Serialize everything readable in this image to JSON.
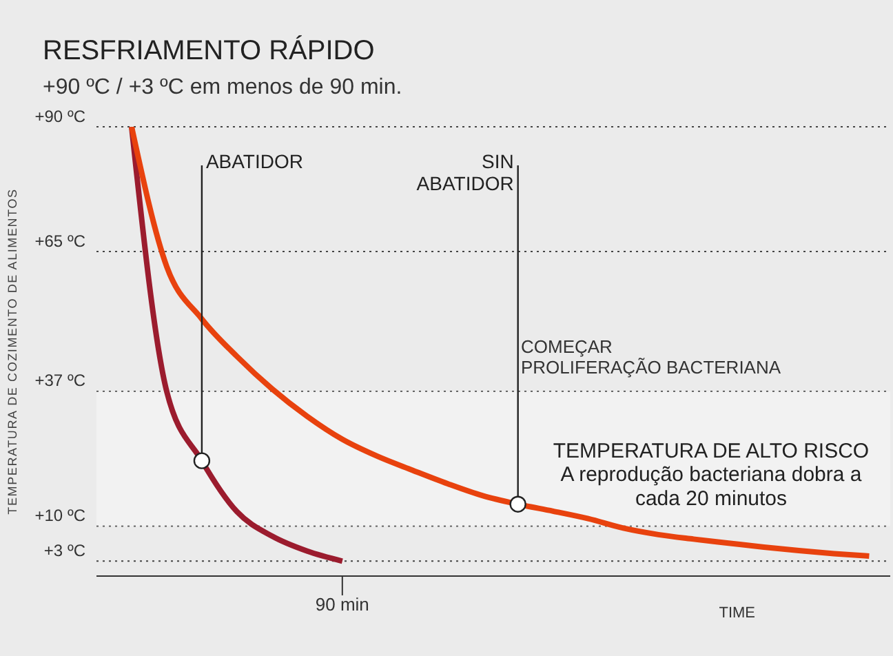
{
  "chart_data": {
    "type": "line",
    "title": "RESFRIAMENTO RÁPIDO",
    "subtitle": "+90 ºC / +3 ºC em menos de 90 min.",
    "ylabel": "TEMPERATURA DE COZIMENTO DE ALIMENTOS",
    "xlabel": "TIME",
    "categories": [
      null,
      null,
      null,
      null,
      null,
      null,
      "90 min",
      null,
      null,
      null,
      null,
      null,
      null,
      null,
      null,
      null,
      null,
      null,
      null,
      null,
      null,
      null
    ],
    "series": [
      {
        "name": "ABATIDOR",
        "color": "#9b1c2e",
        "values": [
          90,
          37,
          23.1,
          12.9,
          8,
          5,
          3,
          null,
          null,
          null,
          null,
          null,
          null,
          null,
          null,
          null,
          null,
          null,
          null,
          null,
          null,
          null
        ]
      },
      {
        "name": "SIN\nABATIDOR",
        "color": "#e8420e",
        "values": [
          90,
          62,
          51.5,
          44,
          37.5,
          32,
          27.4,
          24,
          21.2,
          18.5,
          16.1,
          14.4,
          13,
          11.5,
          9.6,
          8.3,
          7.4,
          6.6,
          5.8,
          5.1,
          4.5,
          4
        ]
      }
    ],
    "ylim": [
      0,
      90
    ],
    "yticks": [
      {
        "value": 3,
        "label": "+3 ºC"
      },
      {
        "value": 10,
        "label": "+10 ºC"
      },
      {
        "value": 37,
        "label": "+37 ºC"
      },
      {
        "value": 65,
        "label": "+65 ºC"
      },
      {
        "value": 90,
        "label": "+90 ºC"
      }
    ],
    "grid": "y",
    "marker": "none",
    "line_style": "solid",
    "legend": false,
    "bands": [
      {
        "axis": "y",
        "from": 10,
        "to": 37,
        "label": "TEMPERATURA DE ALTO RISCO\nA reprodução bacteriana dobra a\ncada 20 minutos",
        "color": "#ffffff"
      }
    ],
    "annotations": [
      "COMEÇAR\nPROLIFERAÇÃO BACTERIANA"
    ]
  }
}
